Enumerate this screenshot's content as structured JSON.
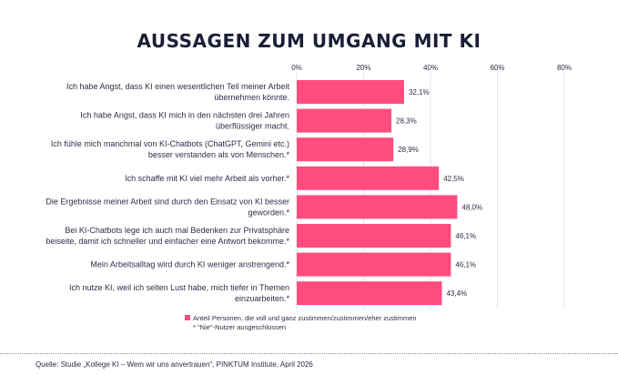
{
  "chart_data": {
    "type": "bar",
    "orientation": "horizontal",
    "title": "AUSSAGEN ZUM UMGANG MIT KI",
    "categories": [
      [
        "Ich habe Angst, dass KI einen wesentlichen Teil meiner Arbeit",
        "übernehmen könnte."
      ],
      [
        "Ich habe Angst, dass KI mich in den nächsten drei Jahren",
        "überflüssiger macht."
      ],
      [
        "Ich fühle mich manchmal von KI-Chatbots (ChatGPT, Gemini etc.)",
        "besser verstanden als von Menschen.*"
      ],
      [
        "Ich schaffe mit KI viel mehr Arbeit als vorher.*"
      ],
      [
        "Die Ergebnisse meiner Arbeit sind durch den Einsatz von KI besser",
        "geworden.*"
      ],
      [
        "Bei KI-Chatbots lege ich auch mal Bedenken zur Privatsphäre",
        "beiseite, damit ich schneller und einfacher eine Antwort bekomme.*"
      ],
      [
        "Mein Arbeitsalltag wird durch KI weniger anstrengend.*"
      ],
      [
        "Ich nutze KI, weil ich selten Lust habe, mich tiefer in Themen",
        "einzuarbeiten.*"
      ]
    ],
    "values": [
      32.1,
      28.3,
      28.9,
      42.5,
      48.0,
      46.1,
      46.1,
      43.4
    ],
    "value_labels": [
      "32,1%",
      "28,3%",
      "28,9%",
      "42,5%",
      "48,0%",
      "46,1%",
      "46,1%",
      "43,4%"
    ],
    "xlim": [
      0,
      80
    ],
    "xticks": [
      0,
      20,
      40,
      60,
      80
    ],
    "xtick_labels": [
      "0%",
      "20%",
      "40%",
      "60%",
      "80%"
    ],
    "xaxis_position": "top",
    "grid": true,
    "bar_color": "#ff4d80",
    "legend": {
      "label": "Anteil Personen, die voll und ganz zustimmen/zustimmen/eher zustimmen",
      "placement": "bottom"
    },
    "note": "* \"Nie\"-Nutzer ausgeschlossen"
  },
  "source": "Quelle: Studie „Kollege KI – Wem wir uns anvertrauen“, PINKTUM Institute, April 2026"
}
